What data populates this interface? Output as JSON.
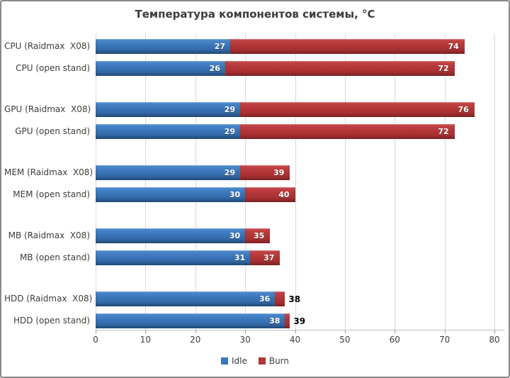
{
  "title": "Температура компонентов системы, °C",
  "colors": {
    "idle_bar": "#3c77bf",
    "burn_bar": "#b23537",
    "grid": "#d8d8d8",
    "axis": "#c0c0c0",
    "text": "#3d3d3d",
    "frame_border": "#8a8a8a",
    "value_label_inside": "#ffffff",
    "value_label_outside": "#000000"
  },
  "chart_data": {
    "type": "bar",
    "orientation": "horizontal",
    "overlay_stacked": true,
    "title": "Температура компонентов системы, °C",
    "categories": [
      "CPU (Raidmax  X08)",
      "CPU (open stand)",
      "GPU (Raidmax  X08)",
      "GPU (open stand)",
      "MEM (Raidmax  X08)",
      "MEM (open stand)",
      "MB (Raidmax  X08)",
      "MB (open stand)",
      "HDD (Raidmax  X08)",
      "HDD (open stand)"
    ],
    "series": [
      {
        "name": "Idle",
        "color": "#3c77bf",
        "values": [
          27,
          26,
          29,
          29,
          29,
          30,
          30,
          31,
          36,
          38
        ]
      },
      {
        "name": "Burn",
        "color": "#b23537",
        "values": [
          74,
          72,
          76,
          72,
          39,
          40,
          35,
          37,
          38,
          39
        ]
      }
    ],
    "value_labels": {
      "idle_shown": [
        "27",
        "26",
        "29",
        "29",
        "29",
        "30",
        "30",
        "31",
        "36",
        "38"
      ],
      "burn_shown": [
        "74",
        "72",
        "76",
        "72",
        "39",
        "40",
        "35",
        "37",
        "38",
        "39"
      ],
      "burn_outside_rows": [
        "HDD (Raidmax  X08)",
        "HDD (open stand)"
      ]
    },
    "x_ticks": [
      0,
      10,
      20,
      30,
      40,
      50,
      60,
      70,
      80
    ],
    "xlim": [
      0,
      80
    ],
    "grid": true,
    "legend_position": "bottom"
  }
}
